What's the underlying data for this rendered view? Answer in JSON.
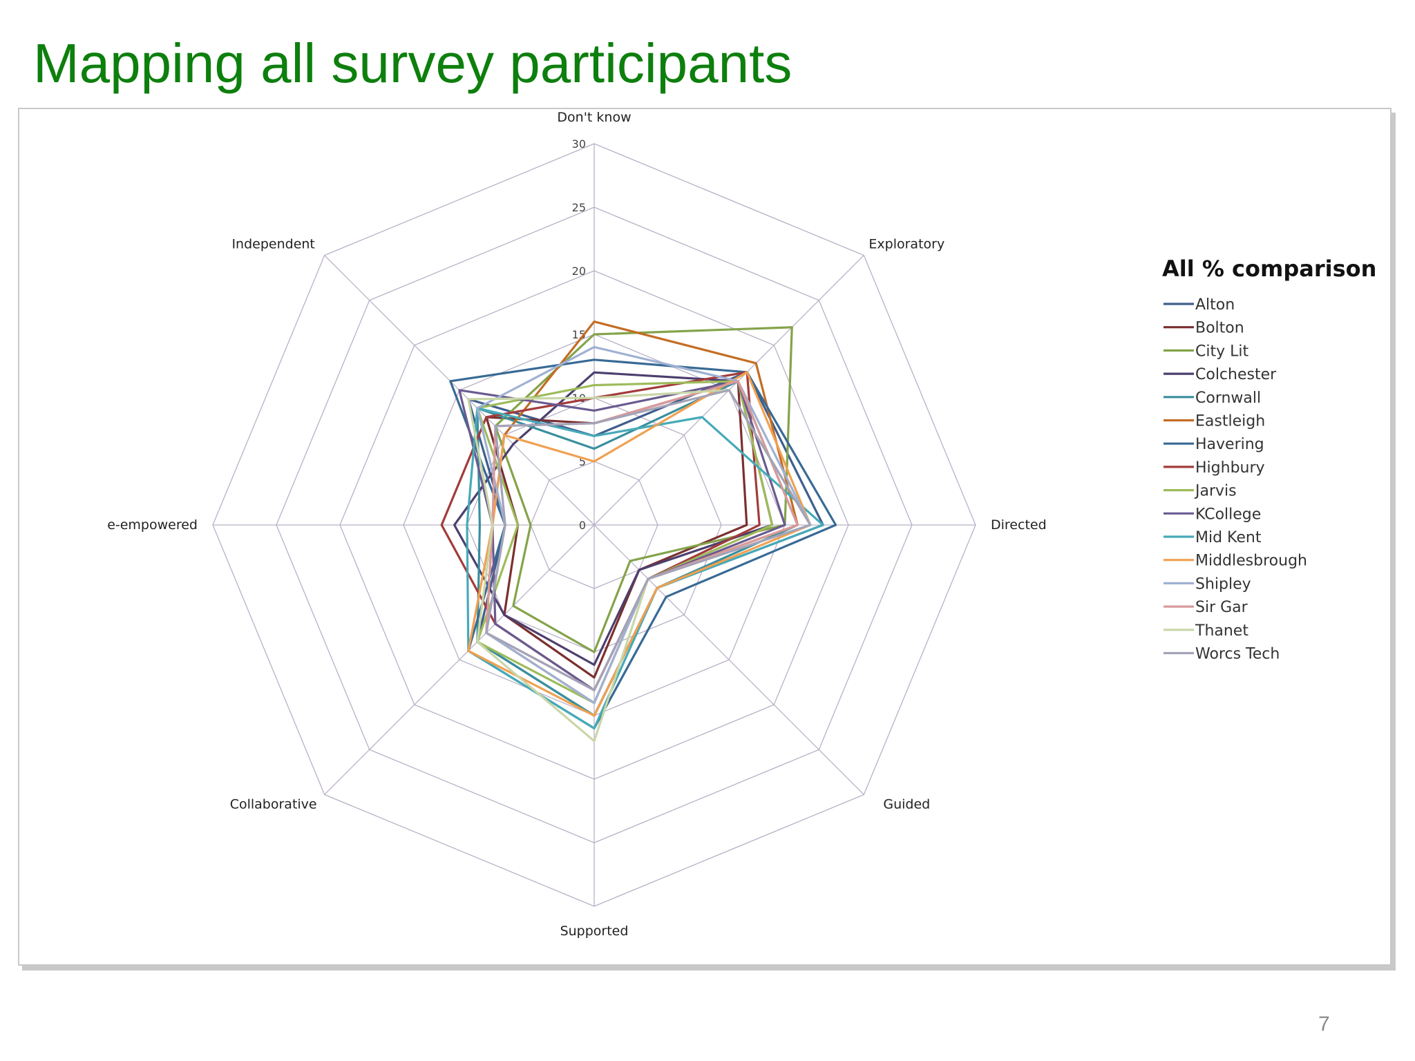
{
  "slide": {
    "title": "Mapping all survey participants",
    "page_number": "7",
    "title_color": "#0d7f0d"
  },
  "chart_data": {
    "type": "radar",
    "title": "",
    "legend_title": "All % comparison",
    "legend_position": "right",
    "axes": [
      "Don't know",
      "Exploratory",
      "Directed",
      "Guided",
      "Supported",
      "Collaborative",
      "e-empowered",
      "Independent"
    ],
    "r_range": [
      0,
      30
    ],
    "ticks": [
      "0",
      "5",
      "10",
      "15",
      "20",
      "25",
      "30"
    ],
    "grid": true,
    "series": [
      {
        "name": "Alton",
        "color": "#3f5e8c",
        "values": [
          7,
          17,
          18,
          7,
          15,
          13,
          7,
          14
        ]
      },
      {
        "name": "Bolton",
        "color": "#7a2f2e",
        "values": [
          8,
          16,
          12,
          5,
          12,
          10,
          6,
          12
        ]
      },
      {
        "name": "City Lit",
        "color": "#84a34a",
        "values": [
          15,
          22,
          15,
          4,
          10,
          9,
          5,
          11
        ]
      },
      {
        "name": "Colchester",
        "color": "#4c3f6e",
        "values": [
          12,
          16,
          14,
          5,
          11,
          10,
          11,
          9
        ]
      },
      {
        "name": "Cornwall",
        "color": "#3a8f9e",
        "values": [
          6,
          16,
          16,
          7,
          15,
          13,
          9,
          13
        ]
      },
      {
        "name": "Eastleigh",
        "color": "#c36d25",
        "values": [
          16,
          18,
          16,
          6,
          14,
          12,
          8,
          10
        ]
      },
      {
        "name": "Havering",
        "color": "#386a95",
        "values": [
          13,
          17,
          19,
          8,
          16,
          14,
          7,
          16
        ]
      },
      {
        "name": "Highbury",
        "color": "#a33b3b",
        "values": [
          10,
          17,
          13,
          6,
          13,
          11,
          12,
          12
        ]
      },
      {
        "name": "Jarvis",
        "color": "#9dbb5a",
        "values": [
          11,
          16,
          14,
          6,
          14,
          13,
          6,
          13
        ]
      },
      {
        "name": "KCollege",
        "color": "#6a5a8f",
        "values": [
          9,
          16,
          15,
          6,
          13,
          11,
          8,
          15
        ]
      },
      {
        "name": "Mid Kent",
        "color": "#46aab8",
        "values": [
          7,
          12,
          18,
          7,
          16,
          14,
          10,
          13
        ]
      },
      {
        "name": "Middlesbrough",
        "color": "#f0a050",
        "values": [
          5,
          17,
          17,
          7,
          15,
          14,
          8,
          10
        ]
      },
      {
        "name": "Shipley",
        "color": "#9fb1d3",
        "values": [
          14,
          16,
          17,
          6,
          14,
          12,
          7,
          13
        ]
      },
      {
        "name": "Sir Gar",
        "color": "#d99a9a",
        "values": [
          8,
          16,
          16,
          6,
          13,
          12,
          8,
          11
        ]
      },
      {
        "name": "Thanet",
        "color": "#c9d6a8",
        "values": [
          10,
          15,
          17,
          6,
          17,
          13,
          8,
          14
        ]
      },
      {
        "name": "Worcs Tech",
        "color": "#a3a3b8",
        "values": [
          8,
          15,
          17,
          6,
          13,
          12,
          7,
          11
        ]
      }
    ]
  }
}
